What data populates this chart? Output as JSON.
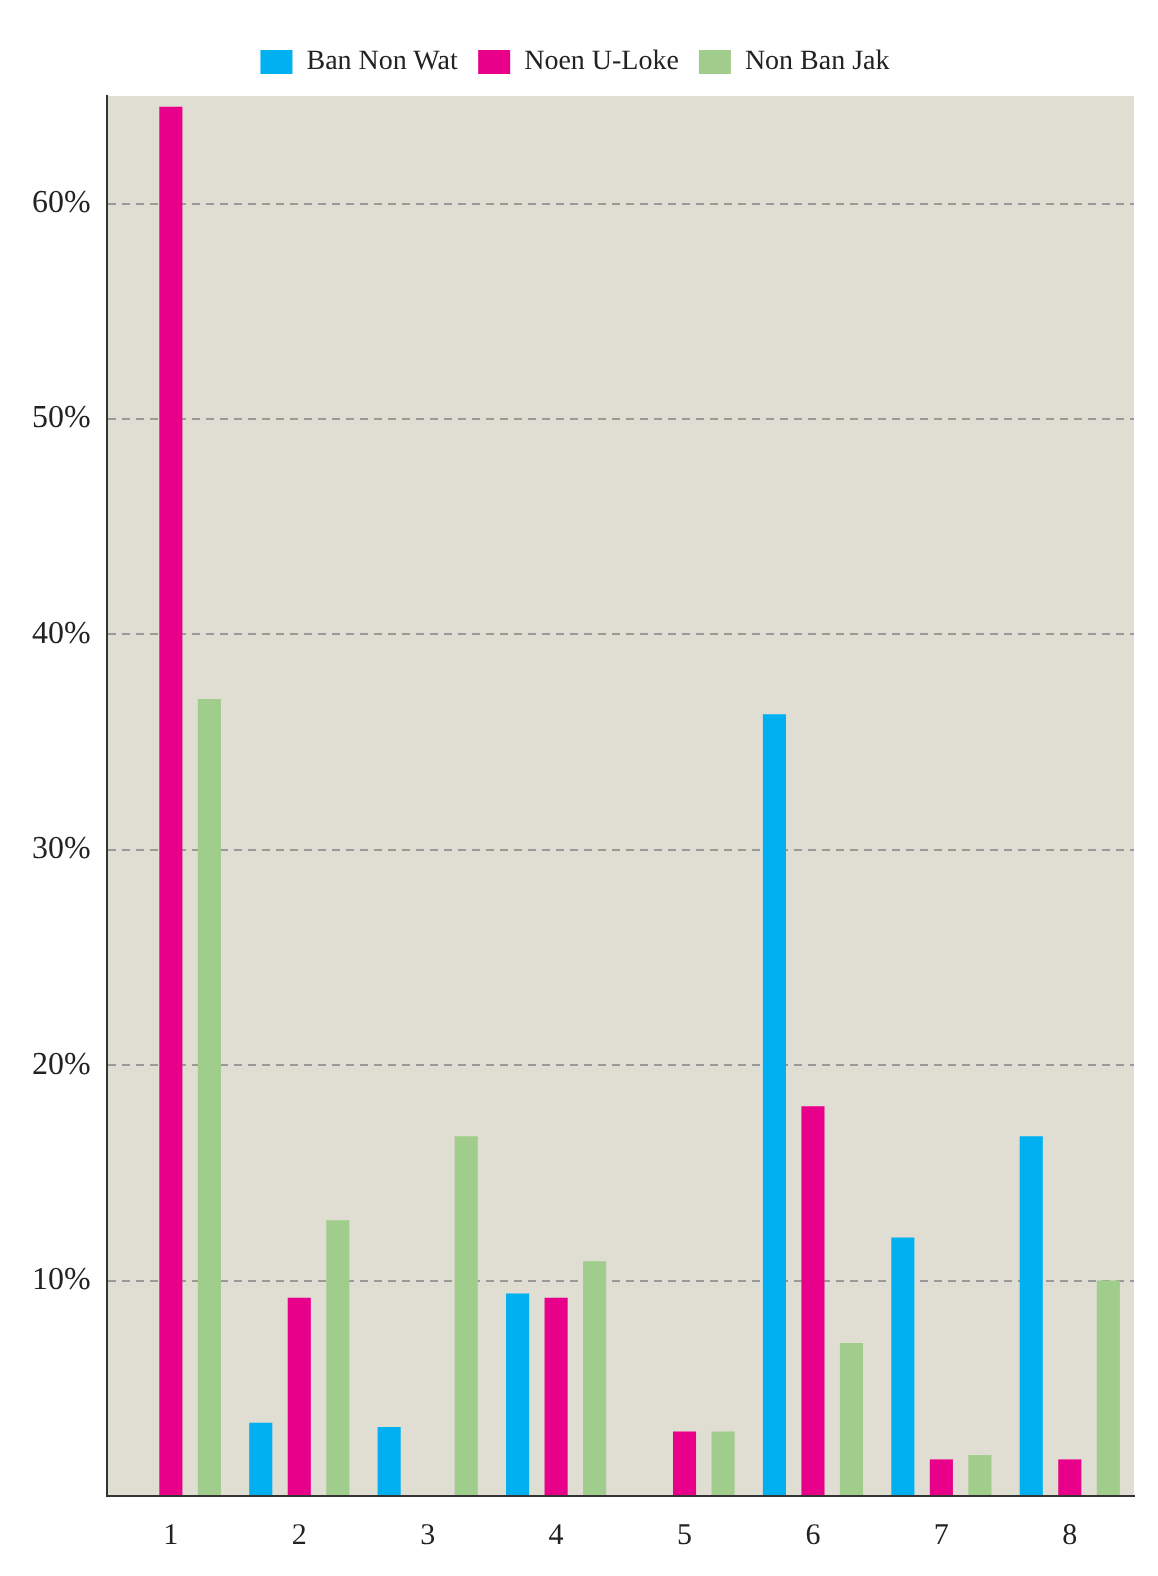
{
  "chart_data": {
    "type": "bar",
    "categories": [
      "1",
      "2",
      "3",
      "4",
      "5",
      "6",
      "7",
      "8"
    ],
    "series": [
      {
        "name": "Ban Non Wat",
        "color": "#00b0f0",
        "values": [
          null,
          3.4,
          3.2,
          9.4,
          null,
          36.3,
          12,
          16.7
        ]
      },
      {
        "name": "Noen U-Loke",
        "color": "#e8008a",
        "values": [
          64.5,
          9.2,
          null,
          9.2,
          3,
          18.1,
          1.7,
          1.7
        ]
      },
      {
        "name": "Non Ban Jak",
        "color": "#a0cc8c",
        "values": [
          37,
          12.8,
          16.7,
          10.9,
          3,
          7.1,
          1.9,
          10
        ]
      }
    ],
    "ylim": [
      0,
      65
    ],
    "yticks": [
      {
        "value": 0,
        "label": null
      },
      {
        "value": 10,
        "label": "10%"
      },
      {
        "value": 20,
        "label": "20%"
      },
      {
        "value": 30,
        "label": "30%"
      },
      {
        "value": 40,
        "label": "40%"
      },
      {
        "value": 50,
        "label": "50%"
      },
      {
        "value": 60,
        "label": "60%"
      }
    ],
    "grid": "y",
    "legend": "top"
  }
}
